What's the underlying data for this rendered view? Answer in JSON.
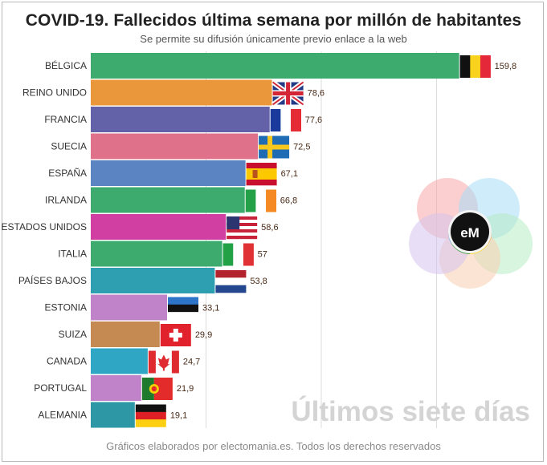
{
  "title": "COVID-19. Fallecidos última semana por millón de habitantes",
  "subtitle": "Se permite su difusión únicamente previo enlace a la web",
  "watermark": "Últimos siete días",
  "footer": "Gráficos elaborados por electomania.es. Todos los derechos reservados",
  "logo": {
    "text": "eM"
  },
  "colors": {
    "gridline": "#dcdcdc",
    "logo_circles": [
      "#f7a8a8",
      "#a8dcf7",
      "#b6ecc4",
      "#f7cdb0",
      "#d6c2ec"
    ],
    "logo_ring": [
      "#e53935",
      "#fb8c00",
      "#fdd835",
      "#43a047",
      "#1e88e5",
      "#8e24aa"
    ]
  },
  "chart_data": {
    "type": "bar",
    "orientation": "horizontal",
    "title": "COVID-19. Fallecidos última semana por millón de habitantes",
    "subtitle": "Se permite su difusión únicamente previo enlace a la web",
    "grid": true,
    "xlim": [
      0,
      170
    ],
    "categories": [
      "BÉLGICA",
      "REINO UNIDO",
      "FRANCIA",
      "SUECIA",
      "ESPAÑA",
      "IRLANDA",
      "ESTADOS UNIDOS",
      "ITALIA",
      "PAÍSES BAJOS",
      "ESTONIA",
      "SUIZA",
      "CANADA",
      "PORTUGAL",
      "ALEMANIA"
    ],
    "values": [
      159.8,
      78.6,
      77.6,
      72.5,
      67.1,
      66.8,
      58.6,
      57,
      53.8,
      33.1,
      29.9,
      24.7,
      21.9,
      19.1
    ],
    "value_labels": [
      "159,8",
      "78,6",
      "77,6",
      "72,5",
      "67,1",
      "66,8",
      "58,6",
      "57",
      "53,8",
      "33,1",
      "29,9",
      "24,7",
      "21,9",
      "19,1"
    ],
    "bar_colors": [
      "#3cab6d",
      "#e9973a",
      "#6361a7",
      "#e0718b",
      "#5b84c3",
      "#3cab6d",
      "#d23fa3",
      "#3cab6d",
      "#2e9fb0",
      "#c083c9",
      "#c48a52",
      "#2fa6c4",
      "#c083c9",
      "#2e97a6"
    ],
    "flags": [
      "belgium-flag",
      "uk-flag",
      "france-flag",
      "sweden-flag",
      "spain-flag",
      "ireland-flag",
      "usa-flag",
      "italy-flag",
      "netherlands-flag",
      "estonia-flag",
      "switzerland-flag",
      "canada-flag",
      "portugal-flag",
      "germany-flag"
    ]
  }
}
